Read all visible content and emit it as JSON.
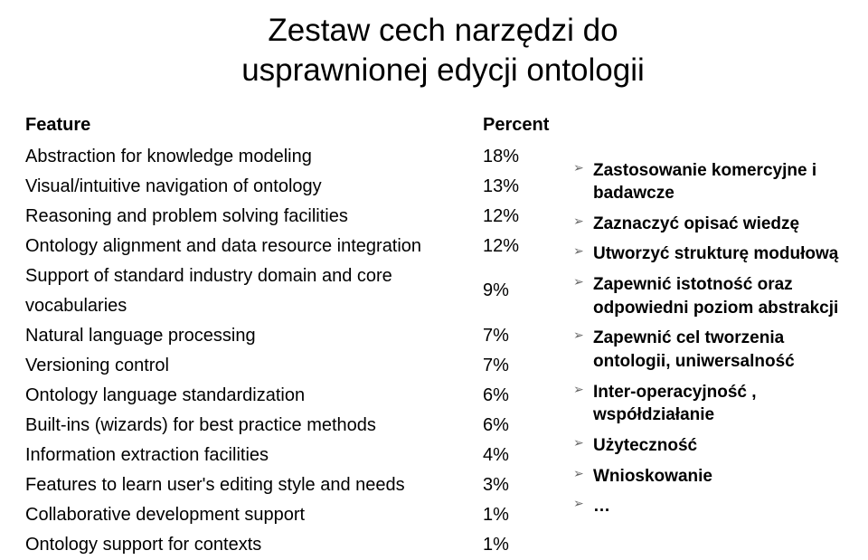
{
  "title_line1": "Zestaw cech narzędzi do",
  "title_line2": "usprawnionej edycji ontologii",
  "table": {
    "header_feature": "Feature",
    "header_percent": "Percent",
    "rows": [
      {
        "feature": "Abstraction for knowledge modeling",
        "percent": "18%"
      },
      {
        "feature": "Visual/intuitive navigation of ontology",
        "percent": "13%"
      },
      {
        "feature": "Reasoning and problem solving facilities",
        "percent": "12%"
      },
      {
        "feature": "Ontology alignment and data resource integration",
        "percent": "12%"
      },
      {
        "feature": "Support of standard industry domain and core vocabularies",
        "percent": "9%"
      },
      {
        "feature": "Natural language processing",
        "percent": "7%"
      },
      {
        "feature": "Versioning control",
        "percent": "7%"
      },
      {
        "feature": "Ontology language standardization",
        "percent": "6%"
      },
      {
        "feature": "Built-ins (wizards) for best practice methods",
        "percent": "6%"
      },
      {
        "feature": "Information extraction facilities",
        "percent": "4%"
      },
      {
        "feature": "Features to learn user's editing style and needs",
        "percent": "3%"
      },
      {
        "feature": "Collaborative development support",
        "percent": "1%"
      },
      {
        "feature": "Ontology support for contexts",
        "percent": "1%"
      }
    ]
  },
  "bullets": [
    "Zastosowanie komercyjne i badawcze",
    "Zaznaczyć opisać wiedzę",
    "Utworzyć strukturę modułową",
    "Zapewnić istotność oraz odpowiedni poziom abstrakcji",
    "Zapewnić cel tworzenia ontologii, uniwersalność",
    "Inter-operacyjność , współdziałanie",
    "Użyteczność",
    "Wnioskowanie",
    "…"
  ],
  "colors": {
    "text": "#000000",
    "background": "#ffffff",
    "arrow": "#666666"
  },
  "typography": {
    "title_fontsize": 35,
    "body_fontsize": 20,
    "bullet_fontsize": 19,
    "bullet_weight": 700
  }
}
